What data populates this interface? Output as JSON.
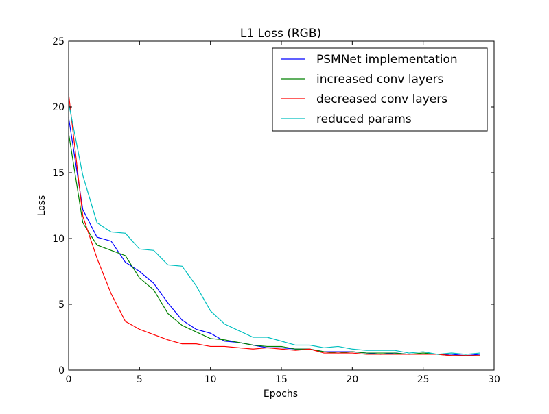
{
  "chart_data": {
    "type": "line",
    "title": "L1 Loss (RGB)",
    "xlabel": "Epochs",
    "ylabel": "Loss",
    "xlim": [
      0,
      30
    ],
    "ylim": [
      0,
      25
    ],
    "xticks": [
      0,
      5,
      10,
      15,
      20,
      25,
      30
    ],
    "yticks": [
      0,
      5,
      10,
      15,
      20,
      25
    ],
    "xtick_labels": [
      "0",
      "5",
      "10",
      "15",
      "20",
      "25",
      "30"
    ],
    "ytick_labels": [
      "0",
      "5",
      "10",
      "15",
      "20",
      "25"
    ],
    "grid": false,
    "legend_position": "top-right",
    "series": [
      {
        "name": "PSMNet implementation",
        "color": "#0000ff",
        "x": [
          0,
          1,
          2,
          3,
          4,
          5,
          6,
          7,
          8,
          9,
          10,
          11,
          12,
          13,
          14,
          15,
          16,
          17,
          18,
          19,
          20,
          21,
          22,
          23,
          24,
          25,
          26,
          27,
          28,
          29
        ],
        "y": [
          19.2,
          12.2,
          10.1,
          9.8,
          8.2,
          7.5,
          6.6,
          5.1,
          3.8,
          3.1,
          2.8,
          2.2,
          2.1,
          1.9,
          1.7,
          1.7,
          1.6,
          1.6,
          1.4,
          1.4,
          1.4,
          1.3,
          1.2,
          1.3,
          1.2,
          1.2,
          1.2,
          1.2,
          1.1,
          1.2
        ]
      },
      {
        "name": "increased conv layers",
        "color": "#008000",
        "x": [
          0,
          1,
          2,
          3,
          4,
          5,
          6,
          7,
          8,
          9,
          10,
          11,
          12,
          13,
          14,
          15,
          16,
          17,
          18,
          19,
          20,
          21,
          22,
          23,
          24,
          25,
          26,
          27,
          28,
          29
        ],
        "y": [
          18.0,
          11.2,
          9.5,
          9.1,
          8.7,
          7.0,
          6.1,
          4.3,
          3.4,
          2.9,
          2.4,
          2.3,
          2.1,
          1.9,
          1.8,
          1.8,
          1.6,
          1.6,
          1.4,
          1.3,
          1.4,
          1.3,
          1.3,
          1.3,
          1.2,
          1.3,
          1.2,
          1.1,
          1.1,
          1.1
        ]
      },
      {
        "name": "decreased conv layers",
        "color": "#ff0000",
        "x": [
          0,
          1,
          2,
          3,
          4,
          5,
          6,
          7,
          8,
          9,
          10,
          11,
          12,
          13,
          14,
          15,
          16,
          17,
          18,
          19,
          20,
          21,
          22,
          23,
          24,
          25,
          26,
          27,
          28,
          29
        ],
        "y": [
          21.0,
          11.7,
          8.5,
          5.8,
          3.7,
          3.1,
          2.7,
          2.3,
          2.0,
          2.0,
          1.8,
          1.8,
          1.7,
          1.6,
          1.7,
          1.6,
          1.5,
          1.6,
          1.3,
          1.3,
          1.3,
          1.2,
          1.2,
          1.2,
          1.2,
          1.2,
          1.2,
          1.1,
          1.1,
          1.1
        ]
      },
      {
        "name": "reduced params",
        "color": "#00bfbf",
        "x": [
          0,
          1,
          2,
          3,
          4,
          5,
          6,
          7,
          8,
          9,
          10,
          11,
          12,
          13,
          14,
          15,
          16,
          17,
          18,
          19,
          20,
          21,
          22,
          23,
          24,
          25,
          26,
          27,
          28,
          29
        ],
        "y": [
          20.3,
          14.8,
          11.2,
          10.5,
          10.4,
          9.2,
          9.1,
          8.0,
          7.9,
          6.4,
          4.5,
          3.5,
          3.0,
          2.5,
          2.5,
          2.2,
          1.9,
          1.9,
          1.7,
          1.8,
          1.6,
          1.5,
          1.5,
          1.5,
          1.3,
          1.4,
          1.2,
          1.3,
          1.2,
          1.3
        ]
      }
    ]
  }
}
